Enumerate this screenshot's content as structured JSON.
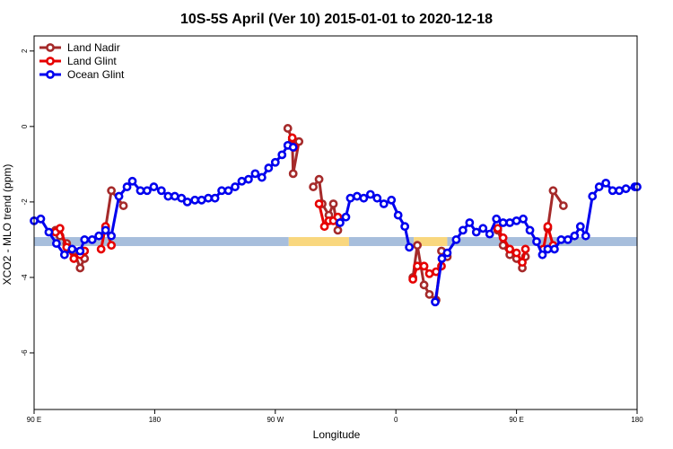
{
  "chart_data": {
    "type": "line",
    "title": "10S-5S April (Ver 10)   2015-01-01 to 2020-12-18",
    "xlabel": "Longitude",
    "ylabel": "XCO2 - MLO trend (ppm)",
    "xlim": [
      0,
      135
    ],
    "ylim": [
      -7.5,
      2.4
    ],
    "x_ticks": [
      {
        "value": 0,
        "label": "90 E"
      },
      {
        "value": 27,
        "label": "180"
      },
      {
        "value": 54,
        "label": "90 W"
      },
      {
        "value": 81,
        "label": "0"
      },
      {
        "value": 108,
        "label": "90 E"
      },
      {
        "value": 135,
        "label": "180"
      }
    ],
    "y_ticks": [
      {
        "value": 2,
        "label": "2"
      },
      {
        "value": 0,
        "label": "0"
      },
      {
        "value": -2,
        "label": "-2"
      },
      {
        "value": -4,
        "label": "-4"
      },
      {
        "value": -6,
        "label": "-6"
      }
    ],
    "band": {
      "y": -3.05,
      "segments": [
        {
          "x0": 0,
          "x1": 57,
          "color": "#a7bedc"
        },
        {
          "x0": 57,
          "x1": 70.5,
          "color": "#f9d77e"
        },
        {
          "x0": 70.5,
          "x1": 85,
          "color": "#a7bedc"
        },
        {
          "x0": 85,
          "x1": 92.5,
          "color": "#f9d77e"
        },
        {
          "x0": 92.5,
          "x1": 135,
          "color": "#a7bedc"
        }
      ]
    },
    "legend": {
      "position": "top-left"
    },
    "series": [
      {
        "name": "Land Nadir",
        "color": "#a52a2a",
        "segments": [
          [
            [
              4.8,
              -2.75
            ],
            [
              5.8,
              -2.9
            ],
            [
              7.3,
              -3.1
            ],
            [
              8.9,
              -3.3
            ],
            [
              10.3,
              -3.75
            ],
            [
              11.3,
              -3.5
            ]
          ],
          [
            [
              16.0,
              -2.7
            ],
            [
              17.3,
              -1.7
            ],
            [
              20.0,
              -2.1
            ]
          ],
          [
            [
              56.8,
              -0.05
            ],
            [
              57.8,
              -0.35
            ],
            [
              58.0,
              -1.25
            ],
            [
              59.3,
              -0.4
            ]
          ],
          [
            [
              62.5,
              -1.6
            ],
            [
              63.8,
              -1.4
            ],
            [
              64.5,
              -2.05
            ],
            [
              66.0,
              -2.35
            ],
            [
              67.0,
              -2.05
            ],
            [
              68.0,
              -2.75
            ]
          ],
          [
            [
              84.8,
              -4.0
            ],
            [
              85.8,
              -3.15
            ],
            [
              87.3,
              -4.2
            ],
            [
              88.5,
              -4.45
            ],
            [
              90.0,
              -4.6
            ],
            [
              91.2,
              -3.3
            ],
            [
              92.5,
              -3.45
            ]
          ],
          [
            [
              103.8,
              -2.75
            ],
            [
              105.0,
              -3.15
            ],
            [
              106.5,
              -3.4
            ],
            [
              108.0,
              -3.5
            ],
            [
              109.3,
              -3.75
            ],
            [
              110.0,
              -3.45
            ]
          ],
          [
            [
              115.0,
              -2.7
            ],
            [
              116.2,
              -1.7
            ],
            [
              118.5,
              -2.1
            ]
          ]
        ]
      },
      {
        "name": "Land Glint",
        "color": "#e60000",
        "segments": [
          [
            [
              4.8,
              -2.8
            ],
            [
              5.8,
              -2.7
            ],
            [
              7.3,
              -3.2
            ],
            [
              8.9,
              -3.5
            ],
            [
              10.3,
              -3.4
            ],
            [
              11.3,
              -3.3
            ]
          ],
          [
            [
              15.0,
              -3.25
            ],
            [
              16.0,
              -2.65
            ],
            [
              17.3,
              -3.15
            ]
          ],
          [
            [
              57.8,
              -0.3
            ],
            [
              58.3,
              -0.55
            ]
          ],
          [
            [
              63.8,
              -2.05
            ],
            [
              65.0,
              -2.65
            ],
            [
              66.0,
              -2.5
            ],
            [
              67.0,
              -2.5
            ],
            [
              68.0,
              -2.4
            ]
          ],
          [
            [
              84.8,
              -4.05
            ],
            [
              85.8,
              -3.7
            ],
            [
              87.3,
              -3.7
            ],
            [
              88.5,
              -3.9
            ],
            [
              90.0,
              -3.85
            ],
            [
              91.2,
              -3.7
            ]
          ],
          [
            [
              103.8,
              -2.7
            ],
            [
              105.0,
              -2.95
            ],
            [
              106.5,
              -3.25
            ],
            [
              108.0,
              -3.35
            ],
            [
              109.3,
              -3.6
            ],
            [
              110.0,
              -3.25
            ]
          ],
          [
            [
              114.0,
              -3.25
            ],
            [
              115.0,
              -2.65
            ],
            [
              116.2,
              -3.15
            ]
          ]
        ]
      },
      {
        "name": "Ocean Glint",
        "color": "#0000ee",
        "segments": [
          [
            [
              0.0,
              -2.5
            ],
            [
              1.5,
              -2.45
            ],
            [
              3.3,
              -2.8
            ],
            [
              5.0,
              -3.1
            ],
            [
              6.8,
              -3.4
            ],
            [
              8.5,
              -3.25
            ],
            [
              10.3,
              -3.3
            ],
            [
              11.3,
              -3.0
            ],
            [
              13.0,
              -3.0
            ],
            [
              14.5,
              -2.9
            ],
            [
              16.0,
              -2.75
            ],
            [
              17.3,
              -2.9
            ],
            [
              19.0,
              -1.85
            ],
            [
              20.8,
              -1.6
            ],
            [
              22.0,
              -1.45
            ],
            [
              23.8,
              -1.7
            ],
            [
              25.3,
              -1.7
            ],
            [
              26.8,
              -1.6
            ],
            [
              28.5,
              -1.7
            ],
            [
              30.0,
              -1.85
            ],
            [
              31.5,
              -1.85
            ],
            [
              33.0,
              -1.9
            ],
            [
              34.3,
              -2.0
            ],
            [
              36.0,
              -1.95
            ],
            [
              37.5,
              -1.95
            ],
            [
              39.0,
              -1.9
            ],
            [
              40.5,
              -1.9
            ],
            [
              42.0,
              -1.7
            ],
            [
              43.5,
              -1.7
            ],
            [
              45.0,
              -1.6
            ],
            [
              46.5,
              -1.45
            ],
            [
              48.0,
              -1.4
            ],
            [
              49.5,
              -1.25
            ],
            [
              51.0,
              -1.35
            ],
            [
              52.5,
              -1.1
            ],
            [
              54.0,
              -0.95
            ],
            [
              55.5,
              -0.75
            ],
            [
              56.8,
              -0.5
            ],
            [
              58.0,
              -0.55
            ]
          ],
          [
            [
              68.5,
              -2.55
            ],
            [
              69.8,
              -2.4
            ],
            [
              70.8,
              -1.9
            ],
            [
              72.3,
              -1.85
            ],
            [
              73.8,
              -1.9
            ],
            [
              75.3,
              -1.8
            ],
            [
              76.8,
              -1.9
            ],
            [
              78.3,
              -2.05
            ],
            [
              80.0,
              -1.95
            ],
            [
              81.5,
              -2.35
            ],
            [
              83.0,
              -2.65
            ],
            [
              84.0,
              -3.2
            ]
          ],
          [
            [
              89.8,
              -4.65
            ],
            [
              91.3,
              -3.5
            ],
            [
              92.5,
              -3.35
            ],
            [
              94.5,
              -3.0
            ],
            [
              96.0,
              -2.75
            ],
            [
              97.5,
              -2.55
            ],
            [
              99.0,
              -2.8
            ],
            [
              100.5,
              -2.7
            ],
            [
              102.0,
              -2.85
            ],
            [
              103.5,
              -2.45
            ],
            [
              105.0,
              -2.55
            ],
            [
              106.5,
              -2.55
            ],
            [
              108.0,
              -2.5
            ],
            [
              109.5,
              -2.45
            ],
            [
              111.0,
              -2.75
            ],
            [
              112.5,
              -3.05
            ],
            [
              113.8,
              -3.4
            ],
            [
              115.0,
              -3.25
            ],
            [
              116.5,
              -3.25
            ],
            [
              118.0,
              -3.0
            ],
            [
              119.5,
              -3.0
            ],
            [
              121.0,
              -2.9
            ],
            [
              122.3,
              -2.65
            ],
            [
              123.5,
              -2.9
            ],
            [
              125.0,
              -1.85
            ],
            [
              126.5,
              -1.6
            ],
            [
              128.0,
              -1.5
            ],
            [
              129.5,
              -1.7
            ],
            [
              131.0,
              -1.7
            ],
            [
              132.5,
              -1.65
            ],
            [
              134.5,
              -1.6
            ],
            [
              135.0,
              -1.6
            ]
          ]
        ]
      }
    ]
  }
}
